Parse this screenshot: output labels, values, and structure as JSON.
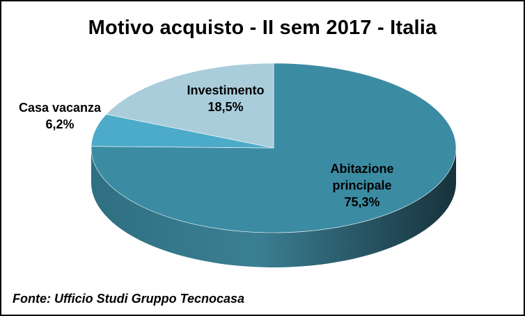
{
  "chart_data": {
    "type": "pie",
    "title": "Motivo acquisto - II sem 2017 - Italia",
    "slices": [
      {
        "label_lines": [
          "Abitazione",
          "principale"
        ],
        "value_label": "75,3%",
        "value": 75.3,
        "color": "#3b8ba3",
        "side_color": "#2a6b80"
      },
      {
        "label_lines": [
          "Casa vacanza"
        ],
        "value_label": "6,2%",
        "value": 6.2,
        "color": "#4cabc8",
        "side_color": "#3a8aa3"
      },
      {
        "label_lines": [
          "Investimento"
        ],
        "value_label": "18,5%",
        "value": 18.5,
        "color": "#a9cddb",
        "side_color": "#86abb9"
      }
    ],
    "legend": "none",
    "style": "3d"
  },
  "source_note": "Fonte: Ufficio Studi Gruppo Tecnocasa"
}
